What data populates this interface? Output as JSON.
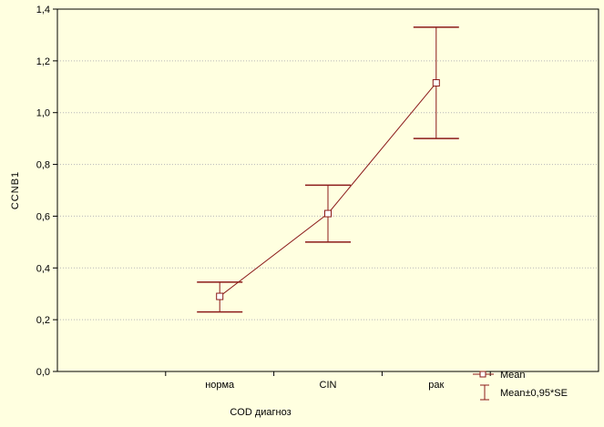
{
  "chart_data": {
    "type": "line",
    "title": "",
    "xlabel": "COD диагноз",
    "ylabel": "CCNB1",
    "categories": [
      "норма",
      "CIN",
      "рак"
    ],
    "ylim": [
      0,
      1.4
    ],
    "yticks": [
      "0,0",
      "0,2",
      "0,4",
      "0,6",
      "0,8",
      "1,0",
      "1,2",
      "1,4"
    ],
    "ytick_values": [
      0,
      0.2,
      0.4,
      0.6,
      0.8,
      1.0,
      1.2,
      1.4
    ],
    "grid": true,
    "series": [
      {
        "name": "Mean",
        "values": [
          0.29,
          0.61,
          1.115
        ],
        "lower": [
          0.23,
          0.5,
          0.9
        ],
        "upper": [
          0.345,
          0.72,
          1.33
        ]
      }
    ],
    "legend": {
      "placement": "bottom-right",
      "entries": [
        "Mean",
        "Mean±0,95*SE"
      ]
    },
    "colors": {
      "series": "#8b1a1a",
      "grid": "#b8b8b8",
      "background": "#ffffe0"
    }
  }
}
